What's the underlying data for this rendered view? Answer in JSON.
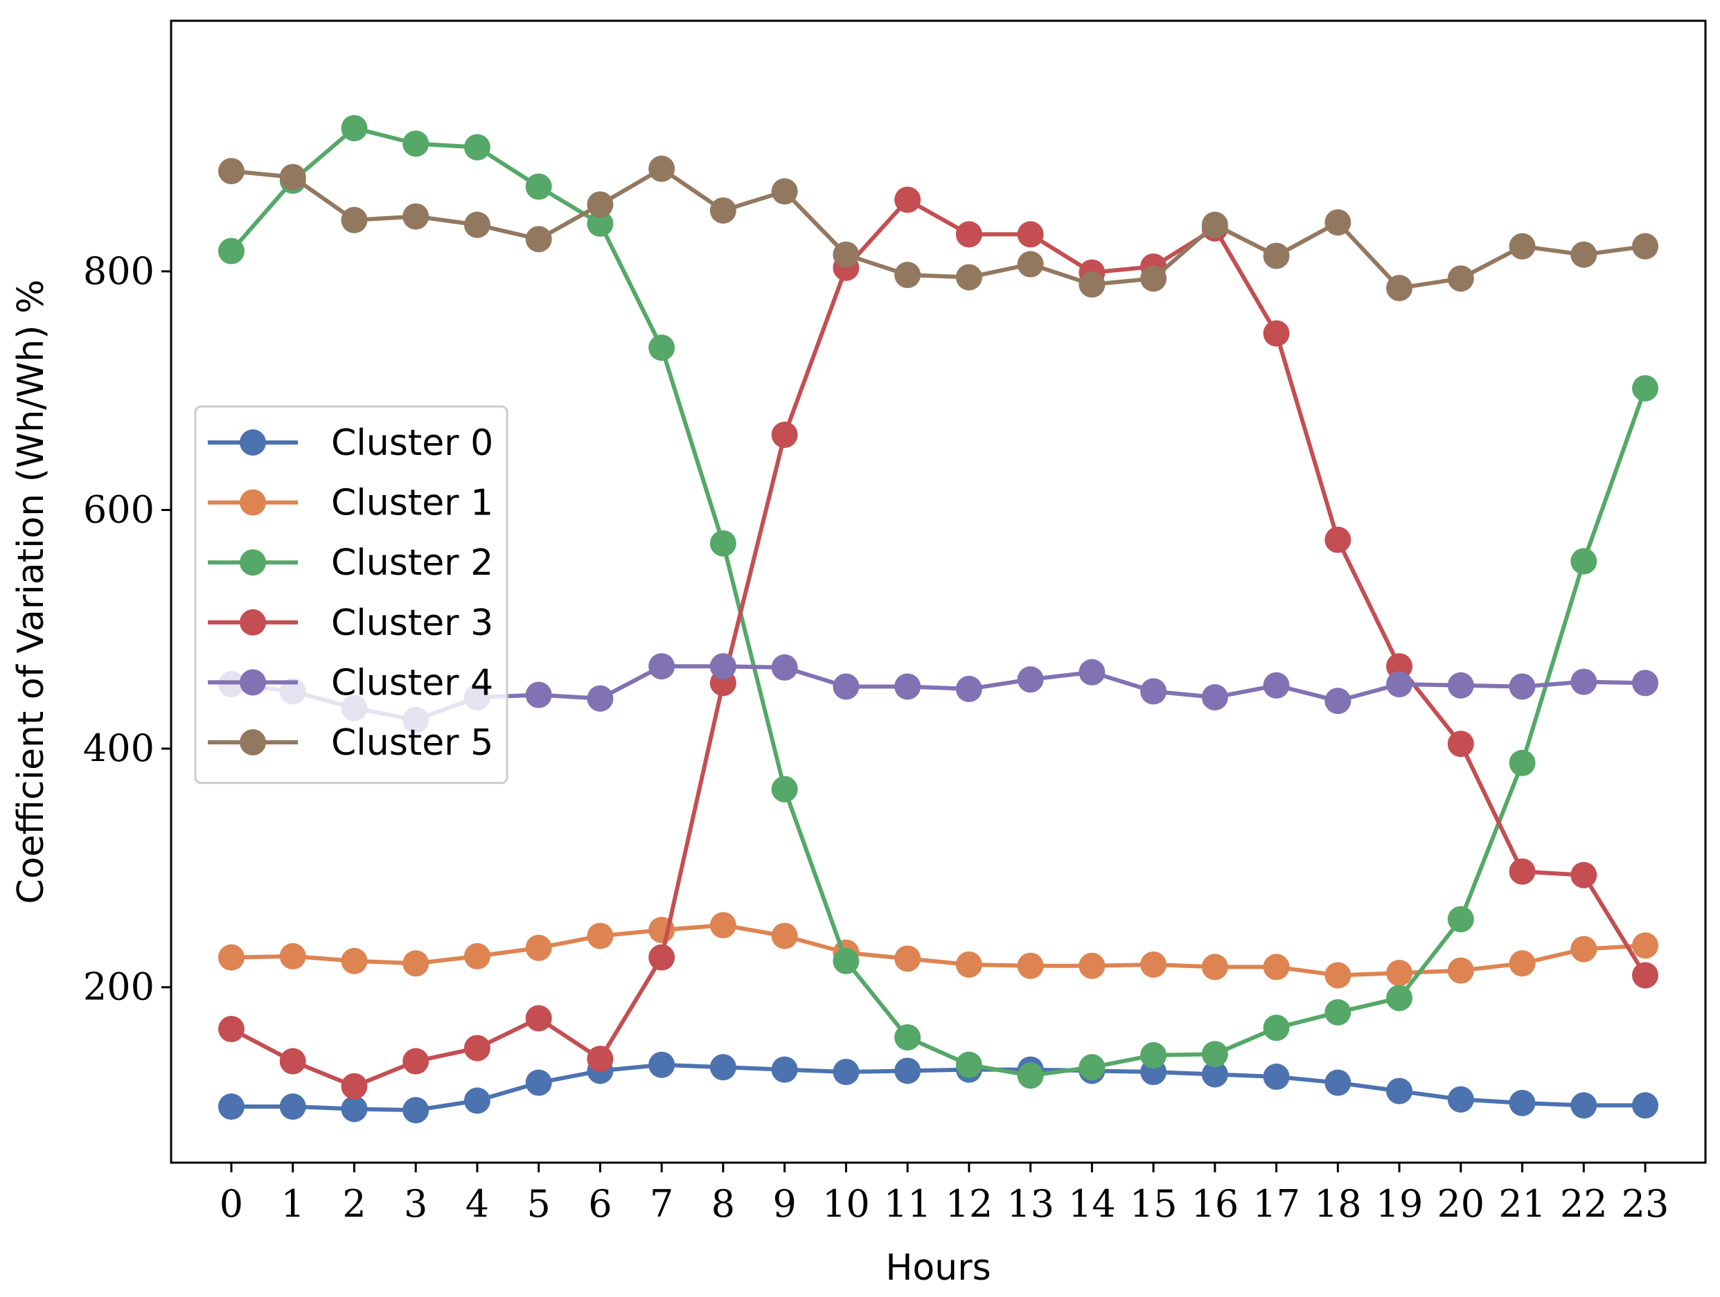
{
  "chart_data": {
    "type": "line",
    "xlabel": "Hours",
    "ylabel": "Coefficient of Variation (Wh/Wh) %",
    "x": [
      0,
      1,
      2,
      3,
      4,
      5,
      6,
      7,
      8,
      9,
      10,
      11,
      12,
      13,
      14,
      15,
      16,
      17,
      18,
      19,
      20,
      21,
      22,
      23
    ],
    "x_ticks": [
      "0",
      "1",
      "2",
      "3",
      "4",
      "5",
      "6",
      "7",
      "8",
      "9",
      "10",
      "11",
      "12",
      "13",
      "14",
      "15",
      "16",
      "17",
      "18",
      "19",
      "20",
      "21",
      "22",
      "23"
    ],
    "y_ticks": [
      200,
      400,
      600,
      800
    ],
    "y_tick_labels": [
      "200",
      "400",
      "600",
      "800"
    ],
    "xlim": [
      -0.98,
      23.98
    ],
    "ylim": [
      53,
      1010
    ],
    "grid": false,
    "legend_position": "center-left",
    "series": [
      {
        "name": "Cluster 0",
        "color": "#4c72b0",
        "values": [
          100,
          100,
          98,
          97,
          105,
          120,
          130,
          135,
          133,
          131,
          129,
          130,
          131,
          131,
          130,
          129,
          127,
          125,
          120,
          113,
          106,
          103,
          101,
          101
        ]
      },
      {
        "name": "Cluster 1",
        "color": "#dd8452",
        "values": [
          225,
          226,
          222,
          220,
          226,
          233,
          243,
          248,
          252,
          243,
          229,
          224,
          219,
          218,
          218,
          219,
          217,
          217,
          210,
          212,
          214,
          220,
          232,
          235
        ]
      },
      {
        "name": "Cluster 2",
        "color": "#55a868",
        "values": [
          817,
          876,
          920,
          907,
          904,
          871,
          840,
          736,
          572,
          366,
          222,
          158,
          135,
          126,
          133,
          143,
          144,
          166,
          179,
          191,
          257,
          388,
          557,
          702
        ]
      },
      {
        "name": "Cluster 3",
        "color": "#c44e52",
        "values": [
          165,
          138,
          117,
          138,
          149,
          174,
          140,
          225,
          455,
          663,
          803,
          860,
          831,
          831,
          799,
          804,
          836,
          748,
          575,
          469,
          404,
          297,
          294,
          210
        ]
      },
      {
        "name": "Cluster 4",
        "color": "#8172b3",
        "values": [
          454,
          448,
          434,
          424,
          443,
          445,
          442,
          469,
          469,
          468,
          452,
          452,
          450,
          458,
          464,
          448,
          443,
          453,
          440,
          454,
          453,
          452,
          456,
          455
        ]
      },
      {
        "name": "Cluster 5",
        "color": "#937860",
        "values": [
          884,
          879,
          843,
          846,
          839,
          827,
          856,
          886,
          851,
          867,
          814,
          797,
          795,
          806,
          789,
          794,
          839,
          813,
          841,
          786,
          794,
          821,
          814,
          821
        ]
      }
    ]
  }
}
